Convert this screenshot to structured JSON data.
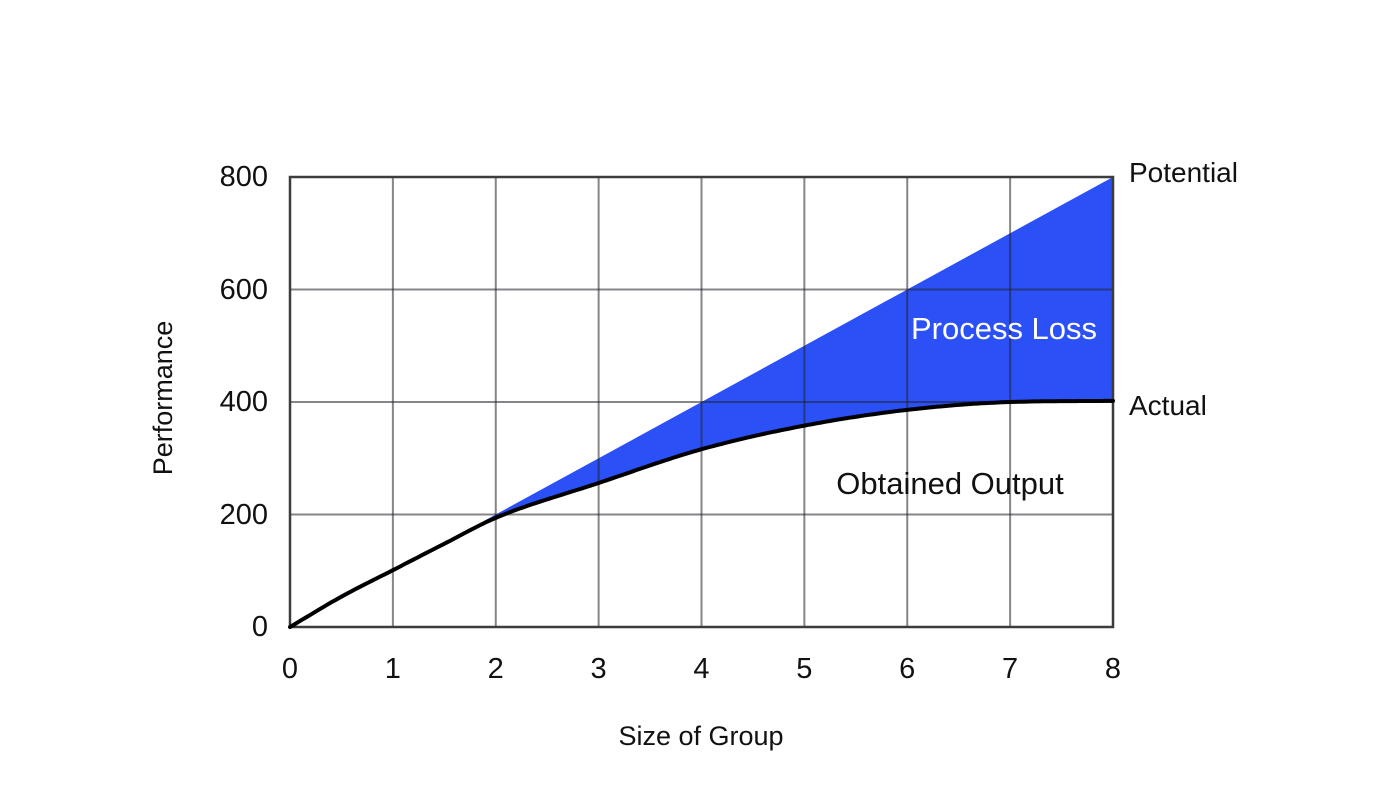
{
  "chart_data": {
    "type": "area",
    "title": "",
    "xlabel": "Size of Group",
    "ylabel": "Performance",
    "xlim": [
      0,
      8
    ],
    "ylim": [
      0,
      800
    ],
    "x_ticks": [
      0,
      1,
      2,
      3,
      4,
      5,
      6,
      7,
      8
    ],
    "y_ticks": [
      0,
      200,
      400,
      600,
      800
    ],
    "grid": true,
    "legend_position": "none",
    "series": [
      {
        "name": "Potential",
        "x": [
          0,
          8
        ],
        "values": [
          0,
          800
        ]
      },
      {
        "name": "Actual",
        "x": [
          0,
          0.5,
          1,
          1.5,
          2,
          3,
          4,
          5,
          6,
          7,
          8
        ],
        "values": [
          0,
          54,
          101,
          148,
          194,
          256,
          316,
          358,
          386,
          400,
          402
        ]
      }
    ],
    "area_between": {
      "upper": "Potential",
      "lower": "Actual",
      "label": "Process Loss"
    },
    "annotations": [
      {
        "id": "potential_label",
        "text": "Potential"
      },
      {
        "id": "actual_label",
        "text": "Actual"
      },
      {
        "id": "process_loss_label",
        "text": "Process Loss"
      },
      {
        "id": "obtained_output_label",
        "text": "Obtained Output"
      }
    ],
    "colors": {
      "fill": "#2b50f5",
      "curve": "#000000",
      "grid": "rgba(35,35,42,0.55)",
      "frame": "#3c3c3c",
      "text": "#111111",
      "fill_label_text": "#ffffff"
    }
  }
}
